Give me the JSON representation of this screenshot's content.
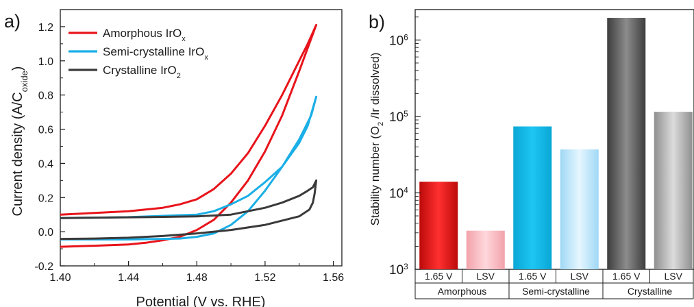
{
  "panel_a": {
    "label": "a)",
    "legend": [
      {
        "name": "Amorphous IrO",
        "sub": "x",
        "color": "#e8141b"
      },
      {
        "name": "Semi-crystalline IrO",
        "sub": "x",
        "color": "#1aafe6"
      },
      {
        "name": "Crystalline IrO",
        "sub": "2",
        "color": "#3a3a3a"
      }
    ]
  },
  "panel_b": {
    "label": "b)"
  },
  "chart_data": [
    {
      "type": "line",
      "xlabel": "Potential (V vs. RHE)",
      "ylabel": {
        "main": "Current density (A/C",
        "sub": "oxide",
        "end": ")"
      },
      "xlim": [
        1.4,
        1.565
      ],
      "ylim": [
        -0.2,
        1.3
      ],
      "xticks": [
        1.4,
        1.44,
        1.48,
        1.52,
        1.56
      ],
      "xtick_labels": [
        "1.40",
        "1.44",
        "1.48",
        "1.52",
        "1.56"
      ],
      "yticks": [
        -0.2,
        0.0,
        0.2,
        0.4,
        0.6,
        0.8,
        1.0,
        1.2
      ],
      "ytick_labels": [
        "-0.2",
        "0.0",
        "0.2",
        "0.4",
        "0.6",
        "0.8",
        "1.0",
        "1.2"
      ],
      "series": [
        {
          "name": "Amorphous IrOx",
          "color": "#e8141b",
          "x": [
            1.4,
            1.42,
            1.44,
            1.46,
            1.47,
            1.48,
            1.49,
            1.5,
            1.51,
            1.52,
            1.53,
            1.54,
            1.545,
            1.55,
            1.547,
            1.54,
            1.53,
            1.52,
            1.51,
            1.5,
            1.49,
            1.48,
            1.47,
            1.46,
            1.45,
            1.44,
            1.42,
            1.4
          ],
          "y": [
            0.1,
            0.11,
            0.12,
            0.14,
            0.16,
            0.19,
            0.25,
            0.34,
            0.46,
            0.62,
            0.8,
            1.0,
            1.1,
            1.21,
            1.13,
            0.94,
            0.68,
            0.47,
            0.3,
            0.17,
            0.07,
            0.01,
            -0.03,
            -0.05,
            -0.065,
            -0.075,
            -0.082,
            -0.088
          ]
        },
        {
          "name": "Semi-crystalline IrOx",
          "color": "#1aafe6",
          "x": [
            1.4,
            1.44,
            1.48,
            1.49,
            1.5,
            1.51,
            1.52,
            1.53,
            1.54,
            1.545,
            1.55,
            1.547,
            1.54,
            1.53,
            1.52,
            1.51,
            1.5,
            1.49,
            1.48,
            1.47,
            1.46,
            1.44,
            1.42,
            1.4
          ],
          "y": [
            0.08,
            0.085,
            0.1,
            0.12,
            0.16,
            0.21,
            0.29,
            0.38,
            0.52,
            0.62,
            0.79,
            0.68,
            0.54,
            0.38,
            0.24,
            0.12,
            0.04,
            -0.01,
            -0.03,
            -0.04,
            -0.042,
            -0.045,
            -0.045,
            -0.045
          ]
        },
        {
          "name": "Crystalline IrO2",
          "color": "#3a3a3a",
          "x": [
            1.4,
            1.45,
            1.48,
            1.5,
            1.51,
            1.52,
            1.53,
            1.54,
            1.545,
            1.548,
            1.55,
            1.549,
            1.548,
            1.546,
            1.54,
            1.52,
            1.5,
            1.48,
            1.46,
            1.44,
            1.42,
            1.4
          ],
          "y": [
            0.08,
            0.085,
            0.09,
            0.1,
            0.12,
            0.14,
            0.17,
            0.21,
            0.24,
            0.26,
            0.3,
            0.22,
            0.17,
            0.13,
            0.09,
            0.04,
            0.01,
            -0.01,
            -0.025,
            -0.035,
            -0.04,
            -0.042
          ]
        }
      ]
    },
    {
      "type": "bar",
      "ylabel": {
        "main": "Stability number (O",
        "sub": "2",
        "end": " /Ir dissolved)"
      },
      "yscale": "log",
      "ylim": [
        1000,
        2500000
      ],
      "ytick_labels": [
        {
          "base": "10",
          "exp": "3",
          "value": 1000
        },
        {
          "base": "10",
          "exp": "4",
          "value": 10000
        },
        {
          "base": "10",
          "exp": "5",
          "value": 100000
        },
        {
          "base": "10",
          "exp": "6",
          "value": 1000000
        }
      ],
      "categories": [
        "1.65 V",
        "LSV",
        "1.65 V",
        "LSV",
        "1.65 V",
        "LSV"
      ],
      "groups": [
        "Amorphous",
        "Semi-crystalline",
        "Crystalline"
      ],
      "values": [
        14000,
        3200,
        74000,
        37000,
        1950000,
        115000
      ],
      "colors": [
        [
          "#bd0a0a",
          "#ff3030",
          "#bd0a0a"
        ],
        [
          "#f2a2aa",
          "#ffd7dc",
          "#f2a2aa"
        ],
        [
          "#0aa7d6",
          "#1dc6f2",
          "#0aa7d6"
        ],
        [
          "#9fd8f5",
          "#e6f6ff",
          "#9fd8f5"
        ],
        [
          "#3d3d3d",
          "#8c8c8c",
          "#3d3d3d"
        ],
        [
          "#8f8f8f",
          "#dcdcdc",
          "#8f8f8f"
        ]
      ]
    }
  ]
}
